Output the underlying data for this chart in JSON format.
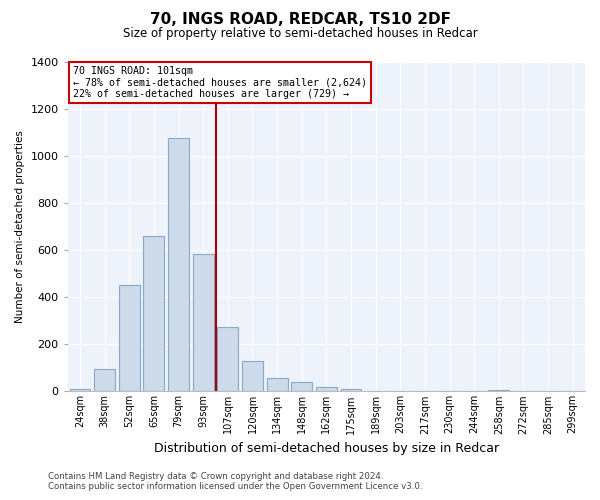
{
  "title": "70, INGS ROAD, REDCAR, TS10 2DF",
  "subtitle": "Size of property relative to semi-detached houses in Redcar",
  "xlabel": "Distribution of semi-detached houses by size in Redcar",
  "ylabel": "Number of semi-detached properties",
  "bar_color": "#ccdaea",
  "bar_edge_color": "#88aacc",
  "reference_line_x": 6,
  "reference_line_color": "#aa0000",
  "annotation_title": "70 INGS ROAD: 101sqm",
  "annotation_line1": "← 78% of semi-detached houses are smaller (2,624)",
  "annotation_line2": "22% of semi-detached houses are larger (729) →",
  "annotation_box_color": "#ffffff",
  "annotation_box_edge": "#cc0000",
  "categories": [
    "24sqm",
    "38sqm",
    "52sqm",
    "65sqm",
    "79sqm",
    "93sqm",
    "107sqm",
    "120sqm",
    "134sqm",
    "148sqm",
    "162sqm",
    "175sqm",
    "189sqm",
    "203sqm",
    "217sqm",
    "230sqm",
    "244sqm",
    "258sqm",
    "272sqm",
    "285sqm",
    "299sqm"
  ],
  "values": [
    10,
    95,
    450,
    660,
    1075,
    585,
    275,
    130,
    55,
    40,
    20,
    12,
    0,
    0,
    0,
    0,
    0,
    8,
    0,
    0,
    0
  ],
  "ylim": [
    0,
    1400
  ],
  "yticks": [
    0,
    200,
    400,
    600,
    800,
    1000,
    1200,
    1400
  ],
  "footer_line1": "Contains HM Land Registry data © Crown copyright and database right 2024.",
  "footer_line2": "Contains public sector information licensed under the Open Government Licence v3.0.",
  "background_color": "#ffffff",
  "plot_bg_color": "#eef2fb"
}
